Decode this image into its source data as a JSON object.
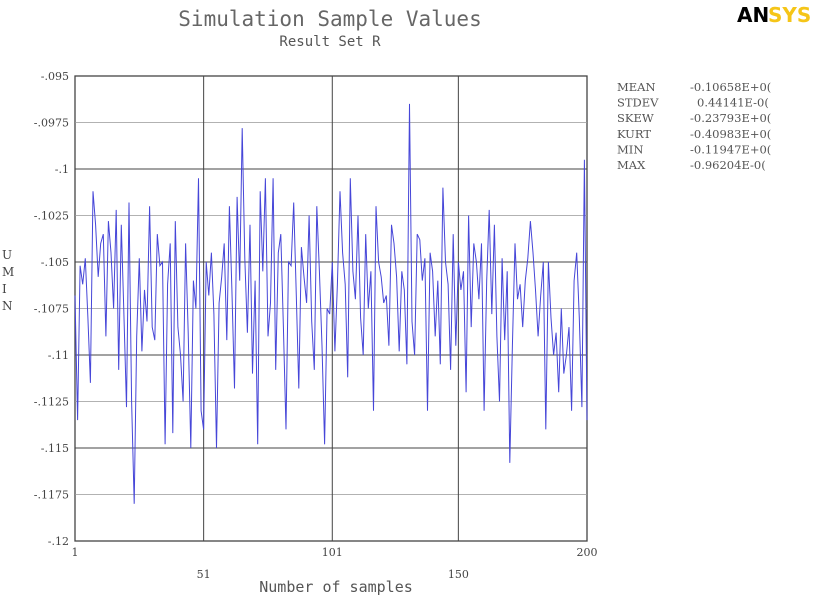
{
  "logo": {
    "part1": "AN",
    "part2": "SYS",
    "accent_color": "#f5c518"
  },
  "colors": {
    "series": "#4646d8",
    "grid_major": "#444444",
    "grid_minor": "#999999"
  },
  "chart_data": {
    "type": "line",
    "title": "Simulation Sample Values",
    "subtitle": "Result Set R",
    "xlabel": "Number of samples",
    "ylabel": "UMIN",
    "xlim": [
      1,
      200
    ],
    "ylim": [
      -0.12,
      -0.095
    ],
    "grid": true,
    "y_ticks": [
      {
        "value": -0.095,
        "label": "-.095"
      },
      {
        "value": -0.0975,
        "label": "-.0975"
      },
      {
        "value": -0.1,
        "label": "-.1"
      },
      {
        "value": -0.1025,
        "label": "-.1025"
      },
      {
        "value": -0.105,
        "label": "-.105"
      },
      {
        "value": -0.1075,
        "label": "-.1075"
      },
      {
        "value": -0.11,
        "label": "-.11"
      },
      {
        "value": -0.1125,
        "label": "-.1125"
      },
      {
        "value": -0.115,
        "label": "-.115"
      },
      {
        "value": -0.1175,
        "label": "-.1175"
      },
      {
        "value": -0.12,
        "label": "-.12"
      }
    ],
    "x_ticks": [
      {
        "value": 1,
        "label": "1",
        "row": 0
      },
      {
        "value": 51,
        "label": "51",
        "row": 1
      },
      {
        "value": 101,
        "label": "101",
        "row": 0
      },
      {
        "value": 150,
        "label": "150",
        "row": 1
      },
      {
        "value": 200,
        "label": "200",
        "row": 0
      }
    ],
    "series": [
      {
        "values": [
          -0.1068,
          -0.1135,
          -0.1052,
          -0.1062,
          -0.1048,
          -0.108,
          -0.1115,
          -0.1012,
          -0.103,
          -0.1058,
          -0.104,
          -0.1035,
          -0.109,
          -0.1028,
          -0.1045,
          -0.1075,
          -0.1022,
          -0.1108,
          -0.103,
          -0.1078,
          -0.1128,
          -0.1018,
          -0.1125,
          -0.118,
          -0.109,
          -0.1048,
          -0.1098,
          -0.1065,
          -0.1082,
          -0.102,
          -0.1085,
          -0.1092,
          -0.1035,
          -0.1052,
          -0.105,
          -0.1148,
          -0.1062,
          -0.104,
          -0.1142,
          -0.1028,
          -0.1085,
          -0.11,
          -0.1125,
          -0.104,
          -0.1088,
          -0.115,
          -0.106,
          -0.1075,
          -0.1005,
          -0.113,
          -0.114,
          -0.105,
          -0.1068,
          -0.1045,
          -0.1078,
          -0.115,
          -0.1072,
          -0.1058,
          -0.104,
          -0.1092,
          -0.102,
          -0.1065,
          -0.1118,
          -0.1015,
          -0.106,
          -0.0978,
          -0.1048,
          -0.1088,
          -0.103,
          -0.111,
          -0.106,
          -0.1148,
          -0.1012,
          -0.1055,
          -0.1005,
          -0.109,
          -0.1072,
          -0.1005,
          -0.1108,
          -0.1045,
          -0.1035,
          -0.1085,
          -0.114,
          -0.105,
          -0.1052,
          -0.1018,
          -0.1068,
          -0.1118,
          -0.1042,
          -0.1058,
          -0.1072,
          -0.1025,
          -0.1082,
          -0.1108,
          -0.102,
          -0.1055,
          -0.1095,
          -0.1148,
          -0.1075,
          -0.1078,
          -0.105,
          -0.1098,
          -0.1062,
          -0.1012,
          -0.1045,
          -0.1062,
          -0.1112,
          -0.1005,
          -0.1055,
          -0.107,
          -0.1025,
          -0.108,
          -0.11,
          -0.1035,
          -0.1075,
          -0.1055,
          -0.113,
          -0.102,
          -0.105,
          -0.1058,
          -0.1072,
          -0.1068,
          -0.1095,
          -0.103,
          -0.104,
          -0.1058,
          -0.1098,
          -0.1055,
          -0.1065,
          -0.1105,
          -0.0965,
          -0.1082,
          -0.11,
          -0.1035,
          -0.1038,
          -0.106,
          -0.1048,
          -0.113,
          -0.1045,
          -0.1055,
          -0.109,
          -0.106,
          -0.1105,
          -0.101,
          -0.105,
          -0.1062,
          -0.1108,
          -0.1035,
          -0.1095,
          -0.105,
          -0.1065,
          -0.1055,
          -0.112,
          -0.1025,
          -0.1085,
          -0.104,
          -0.105,
          -0.107,
          -0.104,
          -0.113,
          -0.106,
          -0.1022,
          -0.1078,
          -0.103,
          -0.109,
          -0.1125,
          -0.1048,
          -0.1092,
          -0.1055,
          -0.1158,
          -0.1095,
          -0.104,
          -0.107,
          -0.1062,
          -0.1085,
          -0.106,
          -0.1048,
          -0.1028,
          -0.1045,
          -0.1065,
          -0.109,
          -0.1068,
          -0.105,
          -0.114,
          -0.105,
          -0.108,
          -0.11,
          -0.1088,
          -0.112,
          -0.1075,
          -0.111,
          -0.11,
          -0.1085,
          -0.113,
          -0.106,
          -0.1045,
          -0.108,
          -0.1128,
          -0.0995,
          -0.1135
        ]
      }
    ]
  },
  "stats": [
    {
      "label": "MEAN",
      "value": "-0.10658E+0("
    },
    {
      "label": "STDEV",
      "value": "0.44141E-0("
    },
    {
      "label": "SKEW",
      "value": "-0.23793E+0("
    },
    {
      "label": "KURT",
      "value": "-0.40983E+0("
    },
    {
      "label": "MIN",
      "value": "-0.11947E+0("
    },
    {
      "label": "MAX",
      "value": "-0.96204E-0("
    }
  ]
}
